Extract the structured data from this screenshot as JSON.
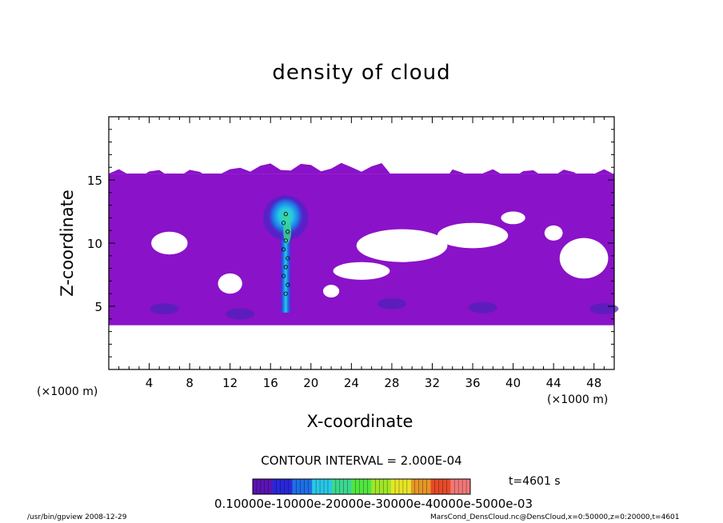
{
  "title": "density of cloud",
  "footer": {
    "left": "/usr/bin/gpview   2008-12-29",
    "right": "MarsCond_DensCloud.nc@DensCloud,x=0:50000,z=0:20000,t=4601"
  },
  "contour_interval": "CONTOUR INTERVAL = 2.000E-04",
  "time_label": "t=4601 s",
  "colorbar_label_text": "0.10000e-10000e-20000e-30000e-40000e-5000e-03",
  "colors": {
    "background_cloud": "#8a12c8",
    "colorbar": [
      "#5a14b4",
      "#2828d8",
      "#1e6ee6",
      "#28c8e6",
      "#3cd890",
      "#50e640",
      "#a0e628",
      "#e6e628",
      "#e69628",
      "#e64a28",
      "#f07878"
    ]
  },
  "chart_data": {
    "type": "heatmap",
    "title": "density of cloud",
    "xlabel": "X-coordinate",
    "ylabel": "Z-coordinate",
    "x_unit": "(×1000 m)",
    "xlim": [
      0,
      50
    ],
    "ylim": [
      0,
      20
    ],
    "x_ticks": [
      4,
      8,
      12,
      16,
      20,
      24,
      28,
      32,
      36,
      40,
      44,
      48
    ],
    "y_ticks": [
      5,
      10,
      15
    ],
    "colorbar": {
      "min": 0.0,
      "max": 0.001,
      "labels_printed": "0.10000e-10000e-20000e-30000e-40000e-5000e-03"
    },
    "contour_interval": 0.0002,
    "time_s": 4601,
    "cloud_layer": {
      "z_bottom": 3.5,
      "z_top": 15.5
    },
    "plume": {
      "x_center": 17.5,
      "z_bottom": 4.5,
      "z_top": 13.5,
      "peak_density_approx": 0.0005
    },
    "grid": false,
    "legend": "bottom"
  }
}
